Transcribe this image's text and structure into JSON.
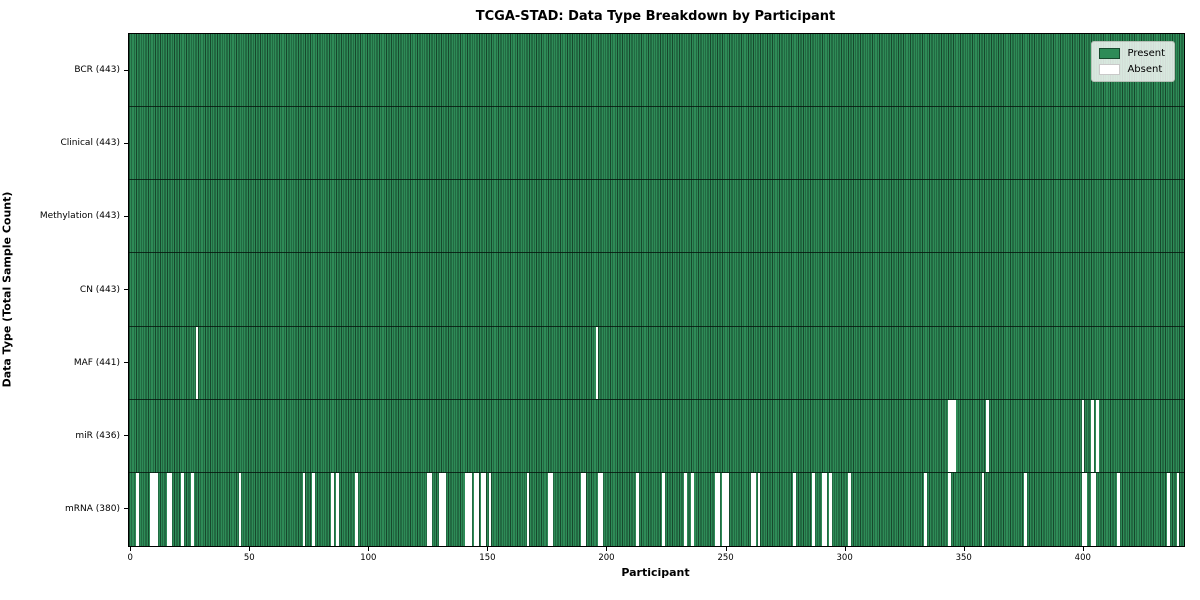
{
  "title": "TCGA-STAD: Data Type Breakdown by Participant",
  "axes": {
    "xlabel": "Participant",
    "ylabel": "Data Type (Total Sample Count)"
  },
  "legend": {
    "items": [
      {
        "label": "Present",
        "color": "#2e8b57"
      },
      {
        "label": "Absent",
        "color": "#ffffff"
      }
    ]
  },
  "chart_data": {
    "type": "heatmap",
    "title": "TCGA-STAD: Data Type Breakdown by Participant",
    "xlabel": "Participant",
    "ylabel": "Data Type (Total Sample Count)",
    "x_ticks": [
      0,
      50,
      100,
      150,
      200,
      250,
      300,
      350,
      400
    ],
    "n_participants": 443,
    "cell_states": [
      "Present",
      "Absent"
    ],
    "colors": {
      "present": "#2e8b57",
      "absent": "#ffffff",
      "cell_edge": "#17492d"
    },
    "legend_position": "upper right",
    "grid": false,
    "rows": [
      {
        "data_type": "BCR",
        "tick_label": "BCR (443)",
        "present_count": 443,
        "absent_participants": []
      },
      {
        "data_type": "Clinical",
        "tick_label": "Clinical (443)",
        "present_count": 443,
        "absent_participants": []
      },
      {
        "data_type": "Methylation",
        "tick_label": "Methylation (443)",
        "present_count": 443,
        "absent_participants": []
      },
      {
        "data_type": "CN",
        "tick_label": "CN (443)",
        "present_count": 443,
        "absent_participants": []
      },
      {
        "data_type": "MAF",
        "tick_label": "MAF (441)",
        "present_count": 441,
        "absent_participants": [
          28,
          196
        ]
      },
      {
        "data_type": "miR",
        "tick_label": "miR (436)",
        "present_count": 436,
        "absent_participants": [
          344,
          345,
          346,
          360,
          400,
          404,
          406
        ]
      },
      {
        "data_type": "mRNA",
        "tick_label": "mRNA (380)",
        "present_count": 380,
        "absent_participants": [
          3,
          9,
          10,
          11,
          16,
          17,
          22,
          26,
          46,
          73,
          77,
          85,
          87,
          95,
          125,
          126,
          130,
          131,
          132,
          141,
          142,
          143,
          145,
          146,
          148,
          149,
          151,
          167,
          176,
          177,
          190,
          191,
          197,
          198,
          213,
          224,
          233,
          236,
          246,
          247,
          249,
          250,
          251,
          261,
          262,
          264,
          279,
          287,
          291,
          292,
          294,
          302,
          334,
          344,
          358,
          376,
          400,
          401,
          404,
          405,
          415,
          436,
          440
        ]
      }
    ]
  }
}
